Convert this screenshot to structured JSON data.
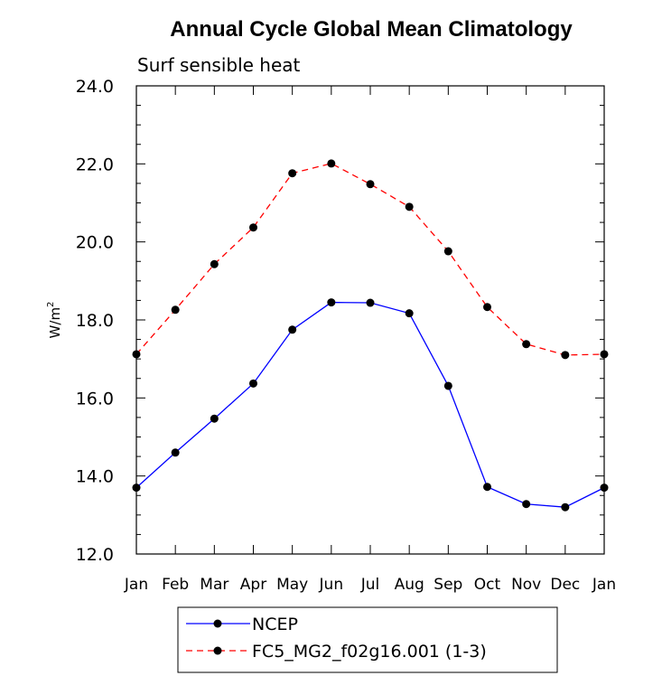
{
  "chart_data": {
    "type": "line",
    "title": "Annual Cycle Global Mean Climatology",
    "subtitle": "Surf sensible heat",
    "ylabel": "W/m",
    "ylabel_sup": "2",
    "xlabel": "",
    "categories": [
      "Jan",
      "Feb",
      "Mar",
      "Apr",
      "May",
      "Jun",
      "Jul",
      "Aug",
      "Sep",
      "Oct",
      "Nov",
      "Dec",
      "Jan"
    ],
    "ylim": [
      12.0,
      24.0
    ],
    "yticks": [
      "12.0",
      "14.0",
      "16.0",
      "18.0",
      "20.0",
      "22.0",
      "24.0"
    ],
    "series": [
      {
        "name": "NCEP",
        "color": "#0000ff",
        "style": "solid",
        "values": [
          13.7,
          14.6,
          15.47,
          16.37,
          17.75,
          18.45,
          18.44,
          18.17,
          16.31,
          13.72,
          13.28,
          13.2,
          13.7
        ]
      },
      {
        "name": "FC5_MG2_f02g16.001 (1-3)",
        "color": "#ff0000",
        "style": "dashed",
        "values": [
          17.12,
          18.26,
          19.43,
          20.37,
          21.76,
          22.01,
          21.48,
          20.9,
          19.76,
          18.33,
          17.38,
          17.1,
          17.12
        ]
      }
    ],
    "legend_position": "bottom",
    "grid": false,
    "marker_color": "#000000"
  }
}
